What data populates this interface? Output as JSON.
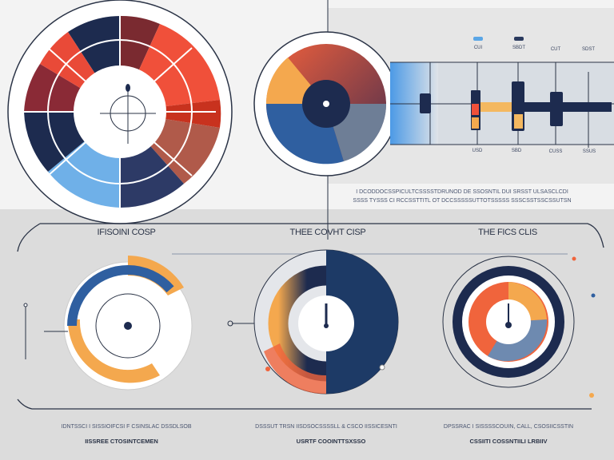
{
  "top_chart": {
    "legend": [
      "CUI",
      "SBDT"
    ],
    "axis_top": [
      "CUT",
      "SDST"
    ],
    "axis_bottom": [
      "USD",
      "SBD",
      "CUSS",
      "SSUS"
    ],
    "caption": [
      "I DCODDOCSSPICULTCSSSSTDRUNOD DE SSOSNTIL DUI SRSST ULSASCLCDI",
      "SSSS TYSSS CI RCCSSTTITL OT DCCSSSSSUTTOTSSSSS SSSCSSTSSCSSUTSN"
    ]
  },
  "panels": [
    {
      "title": "IFISOINI COSP",
      "caption1": "IDNTSSCI I SISSIOIFCSI F CSINSLAC DSSDLSOB",
      "caption2": "IISSREE CTOSINTCEMEN"
    },
    {
      "title": "THEE COVHT CISP",
      "caption1": "DSSSUT TRSN IISDSOCSSSSLL & CSCO IISSICESNTI",
      "caption2": "USRTF COOINTTSXSSO"
    },
    {
      "title": "THE FICS CLIS",
      "caption1": "DPSSRAC I SISSSSCOUIN, CALL, CSOSIICSSTIN",
      "caption2": "CSSIITI COSSNTIILI LRBIIV"
    }
  ],
  "colors": {
    "navy": "#1d2b4f",
    "blue": "#2f5fa0",
    "sky": "#5aa6e6",
    "orange": "#f0643c",
    "red": "#c8321e",
    "amber": "#f4a84e",
    "maroon": "#6a2232"
  }
}
